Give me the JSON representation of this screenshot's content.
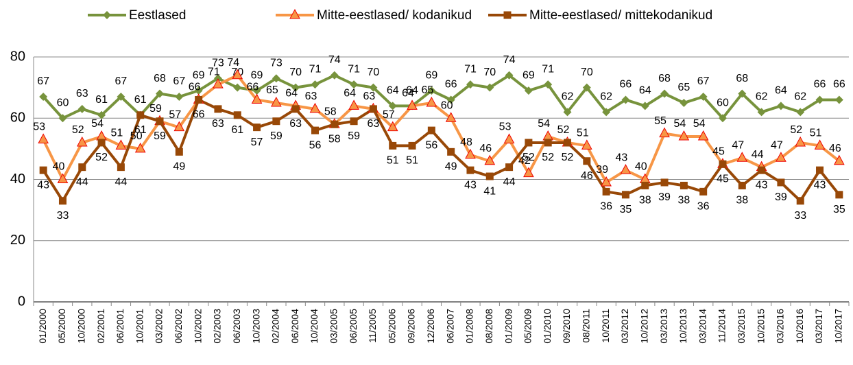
{
  "chart_data": {
    "type": "line",
    "categories": [
      "01/2000",
      "05/2000",
      "10/2000",
      "02/2001",
      "06/2001",
      "10/2001",
      "03/2002",
      "06/2002",
      "10/2002",
      "02/2003",
      "06/2003",
      "10/2003",
      "02/2004",
      "06/2004",
      "10/2004",
      "03/2005",
      "06/2005",
      "11/2005",
      "05/2006",
      "09/2006",
      "12/2006",
      "06/2007",
      "01/2008",
      "08/2008",
      "01/2009",
      "05/2009",
      "01/2010",
      "09/2010",
      "08/2011",
      "10/2011",
      "03/2012",
      "10/2012",
      "03/2013",
      "10/2013",
      "03/2014",
      "11/2014",
      "03/2015",
      "10/2015",
      "03/2016",
      "10/2016",
      "03/2017",
      "10/2017"
    ],
    "series": [
      {
        "name": "Eestlased",
        "color": "#77933c",
        "marker": "diamond",
        "values": [
          67,
          60,
          63,
          61,
          67,
          61,
          68,
          67,
          69,
          73,
          70,
          69,
          73,
          70,
          71,
          74,
          71,
          70,
          64,
          64,
          69,
          66,
          71,
          70,
          74,
          69,
          71,
          62,
          70,
          62,
          66,
          64,
          68,
          65,
          67,
          60,
          68,
          62,
          64,
          62,
          66,
          66
        ]
      },
      {
        "name": "Mitte-eestlased/ kodanikud",
        "color": "#f79646",
        "marker": "triangle",
        "values": [
          53,
          40,
          52,
          54,
          51,
          50,
          59,
          57,
          66,
          71,
          74,
          66,
          65,
          64,
          63,
          58,
          64,
          63,
          57,
          64,
          65,
          60,
          48,
          46,
          53,
          42,
          54,
          52,
          51,
          39,
          43,
          40,
          55,
          54,
          54,
          45,
          47,
          44,
          47,
          52,
          51,
          46
        ]
      },
      {
        "name": "Mitte-eestlased/ mittekodanikud",
        "color": "#984807",
        "marker": "square",
        "values": [
          43,
          33,
          44,
          52,
          44,
          61,
          59,
          49,
          66,
          63,
          61,
          57,
          59,
          63,
          56,
          58,
          59,
          63,
          51,
          51,
          56,
          49,
          43,
          41,
          44,
          52,
          52,
          52,
          46,
          36,
          35,
          38,
          39,
          38,
          36,
          45,
          38,
          43,
          39,
          33,
          43,
          35
        ]
      }
    ],
    "ylim": [
      0,
      80
    ],
    "yticks": [
      0,
      20,
      40,
      60,
      80
    ],
    "grid": true
  }
}
